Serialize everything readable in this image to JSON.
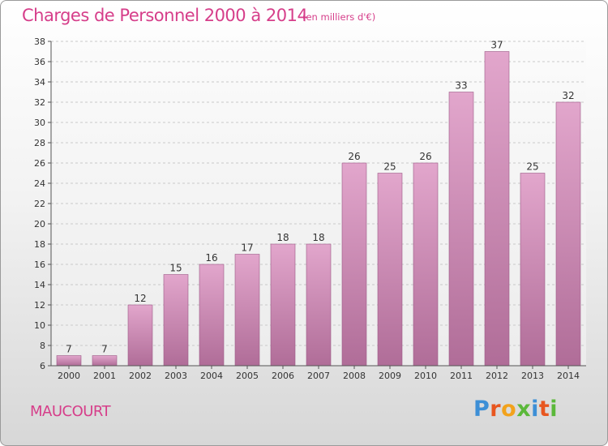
{
  "header": {
    "title": "Charges de Personnel 2000 à 2014",
    "subtitle": "(en milliers d'€)"
  },
  "footer": {
    "commune": "MAUCOURT",
    "logo_letters": [
      {
        "char": "P",
        "color": "#3d8fd6"
      },
      {
        "char": "r",
        "color": "#e8561f"
      },
      {
        "char": "o",
        "color": "#f2a21c"
      },
      {
        "char": "x",
        "color": "#5bb83a"
      },
      {
        "char": "i",
        "color": "#3d8fd6"
      },
      {
        "char": "t",
        "color": "#e8561f"
      },
      {
        "char": "i",
        "color": "#5bb83a"
      }
    ]
  },
  "colors": {
    "accent": "#d63e8a",
    "bar_top": "#e2a6cc",
    "bar_bottom": "#b06d98"
  },
  "chart_data": {
    "type": "bar",
    "categories": [
      "2000",
      "2001",
      "2002",
      "2003",
      "2004",
      "2005",
      "2006",
      "2007",
      "2008",
      "2009",
      "2010",
      "2011",
      "2012",
      "2013",
      "2014"
    ],
    "values": [
      7,
      7,
      12,
      15,
      16,
      17,
      18,
      18,
      26,
      25,
      26,
      33,
      37,
      25,
      32
    ],
    "ylim": [
      6,
      38
    ],
    "yticks": [
      6,
      8,
      10,
      12,
      14,
      16,
      18,
      20,
      22,
      24,
      26,
      28,
      30,
      32,
      34,
      36,
      38
    ],
    "grid": true,
    "legend": "none"
  }
}
